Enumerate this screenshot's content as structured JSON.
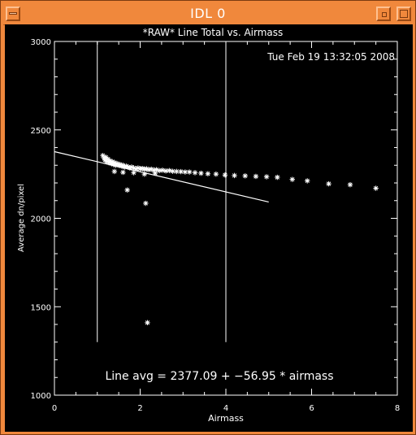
{
  "window": {
    "title": "IDL 0",
    "buttons": [
      "window-menu",
      "minimize",
      "maximize"
    ]
  },
  "colors": {
    "frame": "#f0883c",
    "title_text": "#ffffff",
    "plot_background": "#000000",
    "plot_foreground": "#ffffff"
  },
  "plot": {
    "timestamp": "Tue Feb 19 13:32:05 2008",
    "annotation": "Line avg = 2377.09 + −56.95 * airmass"
  },
  "chart_data": {
    "type": "scatter",
    "title": "*RAW* Line Total vs. Airmass",
    "xlabel": "Airmass",
    "ylabel": "Average dn/pixel",
    "xlim": [
      0,
      8
    ],
    "ylim": [
      1000,
      3000
    ],
    "xticks": [
      0,
      2,
      4,
      6,
      8
    ],
    "yticks": [
      1000,
      1500,
      2000,
      2500,
      3000
    ],
    "grid": false,
    "marker": "*",
    "series": [
      {
        "points": [
          [
            1.13,
            2355
          ],
          [
            1.16,
            2340
          ],
          [
            1.18,
            2330
          ],
          [
            1.2,
            2345
          ],
          [
            1.22,
            2320
          ],
          [
            1.25,
            2335
          ],
          [
            1.27,
            2315
          ],
          [
            1.3,
            2325
          ],
          [
            1.33,
            2310
          ],
          [
            1.35,
            2320
          ],
          [
            1.38,
            2305
          ],
          [
            1.4,
            2315
          ],
          [
            1.43,
            2300
          ],
          [
            1.46,
            2310
          ],
          [
            1.5,
            2300
          ],
          [
            1.53,
            2305
          ],
          [
            1.57,
            2295
          ],
          [
            1.6,
            2300
          ],
          [
            1.64,
            2290
          ],
          [
            1.68,
            2295
          ],
          [
            1.72,
            2290
          ],
          [
            1.76,
            2285
          ],
          [
            1.8,
            2290
          ],
          [
            1.85,
            2285
          ],
          [
            1.9,
            2280
          ],
          [
            1.95,
            2285
          ],
          [
            2.0,
            2280
          ],
          [
            2.05,
            2282
          ],
          [
            2.1,
            2278
          ],
          [
            2.15,
            2280
          ],
          [
            2.2,
            2275
          ],
          [
            2.26,
            2278
          ],
          [
            2.32,
            2272
          ],
          [
            2.38,
            2275
          ],
          [
            2.45,
            2270
          ],
          [
            2.52,
            2272
          ],
          [
            2.6,
            2268
          ],
          [
            2.68,
            2270
          ],
          [
            2.76,
            2266
          ],
          [
            2.85,
            2265
          ],
          [
            2.95,
            2264
          ],
          [
            3.05,
            2262
          ],
          [
            3.15,
            2262
          ],
          [
            3.28,
            2258
          ],
          [
            3.42,
            2255
          ],
          [
            3.58,
            2252
          ],
          [
            3.77,
            2250
          ],
          [
            3.98,
            2245
          ],
          [
            4.2,
            2242
          ],
          [
            4.45,
            2240
          ],
          [
            4.7,
            2237
          ],
          [
            4.95,
            2235
          ],
          [
            5.2,
            2232
          ],
          [
            5.55,
            2220
          ],
          [
            5.9,
            2212
          ],
          [
            6.4,
            2195
          ],
          [
            6.9,
            2190
          ],
          [
            7.5,
            2170
          ],
          [
            1.4,
            2265
          ],
          [
            1.6,
            2260
          ],
          [
            1.85,
            2258
          ],
          [
            2.1,
            2250
          ],
          [
            2.35,
            2255
          ],
          [
            1.7,
            2160
          ],
          [
            2.13,
            2085
          ],
          [
            2.17,
            1410
          ]
        ]
      }
    ],
    "vertical_lines": [
      {
        "x": 1.0,
        "y_from": 1300,
        "y_to": 3000
      },
      {
        "x": 4.0,
        "y_from": 1300,
        "y_to": 3000
      }
    ],
    "fit_line": {
      "intercept": 2377.09,
      "slope": -56.95,
      "x_from": 0,
      "x_to": 5
    }
  }
}
